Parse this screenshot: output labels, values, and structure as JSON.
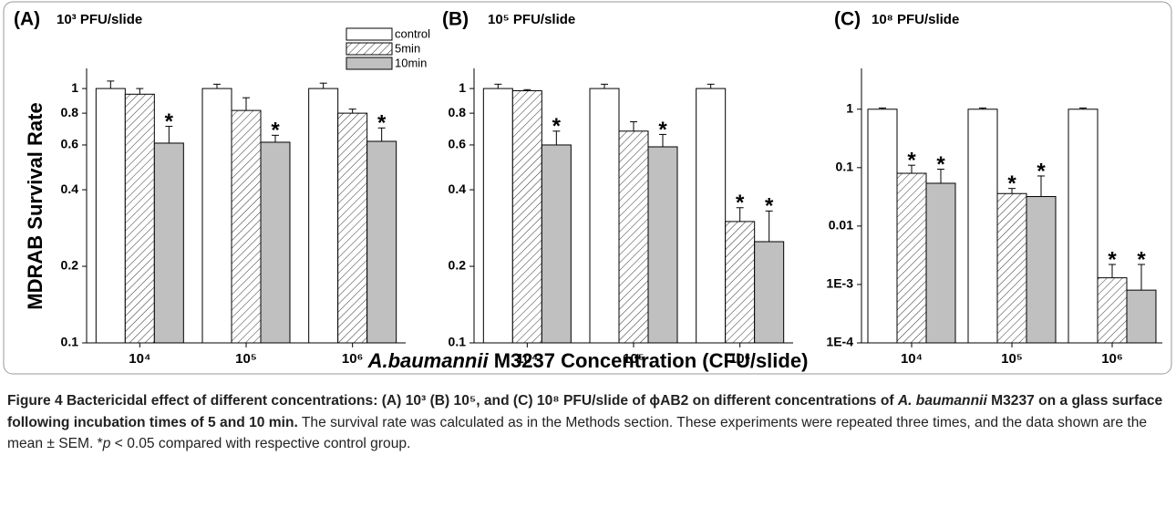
{
  "figure": {
    "xlabel_italic": "A.baumannii",
    "xlabel_rest": " M3237 Concentration (CFU/slide)",
    "ylabel": "MDRAB Survival Rate",
    "caption": [
      {
        "text": "Figure 4 Bactericidal effect of different concentrations: (A) 10³ (B) 10⁵, and (C) 10⁸ PFU/slide of ϕAB2 on different concentrations of ",
        "style": "bold"
      },
      {
        "text": "A. baumannii",
        "style": "bold-italic"
      },
      {
        "text": " M3237 on a glass surface following incubation times of 5 and 10 min.",
        "style": "bold"
      },
      {
        "text": " The survival rate was calculated as in the Methods section. These experiments were repeated three times, and the data shown are the mean ± SEM. *",
        "style": "normal"
      },
      {
        "text": "p",
        "style": "italic"
      },
      {
        "text": " < 0.05 compared with respective control group.",
        "style": "normal"
      }
    ]
  },
  "chart_data": [
    {
      "type": "bar",
      "panel": "(A)",
      "title": "10³ PFU/slide",
      "log_scale": true,
      "categories": [
        "10⁴",
        "10⁵",
        "10⁶"
      ],
      "ylim": [
        0.1,
        1.2
      ],
      "yticks": [
        0.1,
        0.2,
        0.4,
        0.6,
        0.8,
        1
      ],
      "series": [
        {
          "name": "control",
          "color": "#ffffff",
          "hatch": false,
          "values": [
            1,
            1,
            1
          ],
          "errors": [
            0.07,
            0.04,
            0.05
          ],
          "labels": [
            null,
            null,
            null
          ]
        },
        {
          "name": "5min",
          "color": "#ffffff",
          "hatch": true,
          "values": [
            0.95,
            0.82,
            0.8
          ],
          "errors": [
            0.05,
            0.1,
            0.03
          ],
          "labels": [
            null,
            null,
            null
          ]
        },
        {
          "name": "10min",
          "color": "#c0c0c0",
          "hatch": false,
          "values": [
            0.61,
            0.615,
            0.62
          ],
          "errors": [
            0.1,
            0.04,
            0.08
          ],
          "labels": [
            "*",
            "*",
            "*"
          ]
        }
      ]
    },
    {
      "type": "bar",
      "panel": "(B)",
      "title": "10⁵ PFU/slide",
      "log_scale": true,
      "categories": [
        "10⁴",
        "10⁵",
        "10⁶"
      ],
      "ylim": [
        0.1,
        1.2
      ],
      "yticks": [
        0.1,
        0.2,
        0.4,
        0.6,
        0.8,
        1
      ],
      "series": [
        {
          "name": "control",
          "color": "#ffffff",
          "hatch": false,
          "values": [
            1,
            1,
            1
          ],
          "errors": [
            0.04,
            0.04,
            0.04
          ],
          "labels": [
            null,
            null,
            null
          ]
        },
        {
          "name": "5min",
          "color": "#ffffff",
          "hatch": true,
          "values": [
            0.98,
            0.68,
            0.3
          ],
          "errors": [
            0.01,
            0.06,
            0.04
          ],
          "labels": [
            null,
            null,
            "*"
          ]
        },
        {
          "name": "10min",
          "color": "#c0c0c0",
          "hatch": false,
          "values": [
            0.6,
            0.59,
            0.25
          ],
          "errors": [
            0.08,
            0.07,
            0.08
          ],
          "labels": [
            "*",
            "*",
            "*"
          ]
        }
      ]
    },
    {
      "type": "bar",
      "panel": "(C)",
      "title": "10⁸ PFU/slide",
      "log_scale": true,
      "categories": [
        "10⁴",
        "10⁵",
        "10⁶"
      ],
      "ylim": [
        0.0001,
        5
      ],
      "yticks": [
        {
          "value": 0.0001,
          "label": "1E-4"
        },
        {
          "value": 0.001,
          "label": "1E-3"
        },
        0.01,
        0.1,
        1
      ],
      "series": [
        {
          "name": "control",
          "color": "#ffffff",
          "hatch": false,
          "values": [
            1,
            1,
            1
          ],
          "errors": [
            0.05,
            0.05,
            0.05
          ],
          "labels": [
            null,
            null,
            null
          ]
        },
        {
          "name": "5min",
          "color": "#ffffff",
          "hatch": true,
          "values": [
            0.08,
            0.036,
            0.0013
          ],
          "errors": [
            0.03,
            0.008,
            0.0009
          ],
          "labels": [
            "*",
            "*",
            "*"
          ]
        },
        {
          "name": "10min",
          "color": "#c0c0c0",
          "hatch": false,
          "values": [
            0.054,
            0.032,
            0.0008
          ],
          "errors": [
            0.04,
            0.04,
            0.0014
          ],
          "labels": [
            "*",
            "*",
            "*"
          ]
        }
      ]
    }
  ]
}
